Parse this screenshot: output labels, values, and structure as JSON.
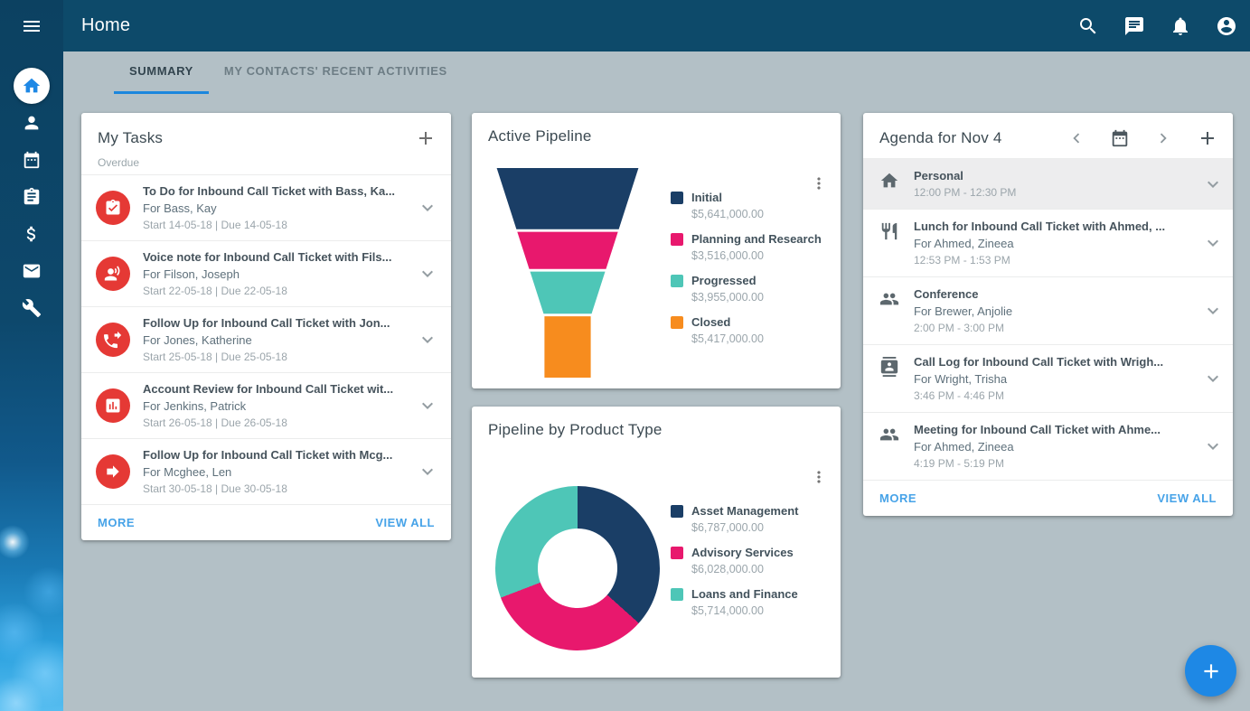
{
  "appbar": {
    "title": "Home",
    "tabs": [
      {
        "label": "SUMMARY",
        "active": true
      },
      {
        "label": "MY CONTACTS' RECENT ACTIVITIES",
        "active": false
      }
    ],
    "icons": [
      "search",
      "chat",
      "notifications",
      "account"
    ]
  },
  "sidebar": {
    "menu_icon": "menu",
    "items": [
      {
        "name": "home",
        "icon": "home",
        "active": true
      },
      {
        "name": "contacts",
        "icon": "person",
        "active": false
      },
      {
        "name": "calendar",
        "icon": "calendar",
        "active": false
      },
      {
        "name": "tasks",
        "icon": "assignment",
        "active": false
      },
      {
        "name": "opportunities",
        "icon": "money",
        "active": false
      },
      {
        "name": "email",
        "icon": "mail",
        "active": false
      },
      {
        "name": "tools",
        "icon": "wrench",
        "active": false
      }
    ]
  },
  "my_tasks": {
    "title": "My Tasks",
    "section_label": "Overdue",
    "add_icon": "plus",
    "tasks": [
      {
        "icon": "task_check",
        "title": "To Do for Inbound Call Ticket with Bass, Ka...",
        "for": "For Bass, Kay",
        "dates": "Start 14-05-18 | Due 14-05-18"
      },
      {
        "icon": "voice",
        "title": "Voice note for Inbound Call Ticket with Fils...",
        "for": "For Filson, Joseph",
        "dates": "Start 22-05-18 | Due 22-05-18"
      },
      {
        "icon": "phone_forwarded",
        "title": "Follow Up for Inbound Call Ticket with Jon...",
        "for": "For Jones, Katherine",
        "dates": "Start 25-05-18 | Due 25-05-18"
      },
      {
        "icon": "chart_bars",
        "title": "Account Review for Inbound Call Ticket wit...",
        "for": "For Jenkins, Patrick",
        "dates": "Start 26-05-18 | Due 26-05-18"
      },
      {
        "icon": "forward",
        "title": "Follow Up for Inbound Call Ticket with Mcg...",
        "for": "For Mcghee, Len",
        "dates": "Start 30-05-18 | Due 30-05-18"
      }
    ],
    "more_label": "MORE",
    "view_all_label": "VIEW ALL"
  },
  "chart_data": [
    {
      "type": "funnel",
      "title": "Active Pipeline",
      "categories": [
        "Initial",
        "Planning and Research",
        "Progressed",
        "Closed"
      ],
      "values": [
        5641000,
        3516000,
        3955000,
        5417000
      ],
      "labels": [
        "$5,641,000.00",
        "$3,516,000.00",
        "$3,955,000.00",
        "$5,417,000.00"
      ],
      "colors": [
        "#1a3e66",
        "#e8186d",
        "#4ec6b7",
        "#f78c1e"
      ],
      "legend_position": "right"
    },
    {
      "type": "donut",
      "title": "Pipeline by Product Type",
      "categories": [
        "Asset Management",
        "Advisory Services",
        "Loans and Finance"
      ],
      "values": [
        6787000,
        6028000,
        5714000
      ],
      "labels": [
        "$6,787,000.00",
        "$6,028,000.00",
        "$5,714,000.00"
      ],
      "colors": [
        "#1a3e66",
        "#e8186d",
        "#4ec6b7"
      ],
      "legend_position": "right"
    }
  ],
  "agenda": {
    "title": "Agenda for Nov 4",
    "items": [
      {
        "icon": "home",
        "title": "Personal",
        "for": "",
        "time": "12:00 PM - 12:30 PM",
        "highlighted": true
      },
      {
        "icon": "restaurant",
        "title": "Lunch for Inbound Call Ticket with Ahmed, ...",
        "for": "For Ahmed, Zineea",
        "time": "12:53 PM - 1:53 PM",
        "highlighted": false
      },
      {
        "icon": "people",
        "title": "Conference",
        "for": "For Brewer, Anjolie",
        "time": "2:00 PM - 3:00 PM",
        "highlighted": false
      },
      {
        "icon": "contacts",
        "title": "Call Log for Inbound Call Ticket with Wrigh...",
        "for": "For Wright, Trisha",
        "time": "3:46 PM - 4:46 PM",
        "highlighted": false
      },
      {
        "icon": "people",
        "title": "Meeting for Inbound Call Ticket with Ahme...",
        "for": "For Ahmed, Zineea",
        "time": "4:19 PM - 5:19 PM",
        "highlighted": false
      }
    ],
    "more_label": "MORE",
    "view_all_label": "VIEW ALL"
  },
  "fab_icon": "plus",
  "colors": {
    "app_bar": "#0d4a6a",
    "accent_blue": "#1e88e5",
    "link_blue": "#47a3e8",
    "overdue_red": "#e53935",
    "background": "#b3c0c6"
  }
}
